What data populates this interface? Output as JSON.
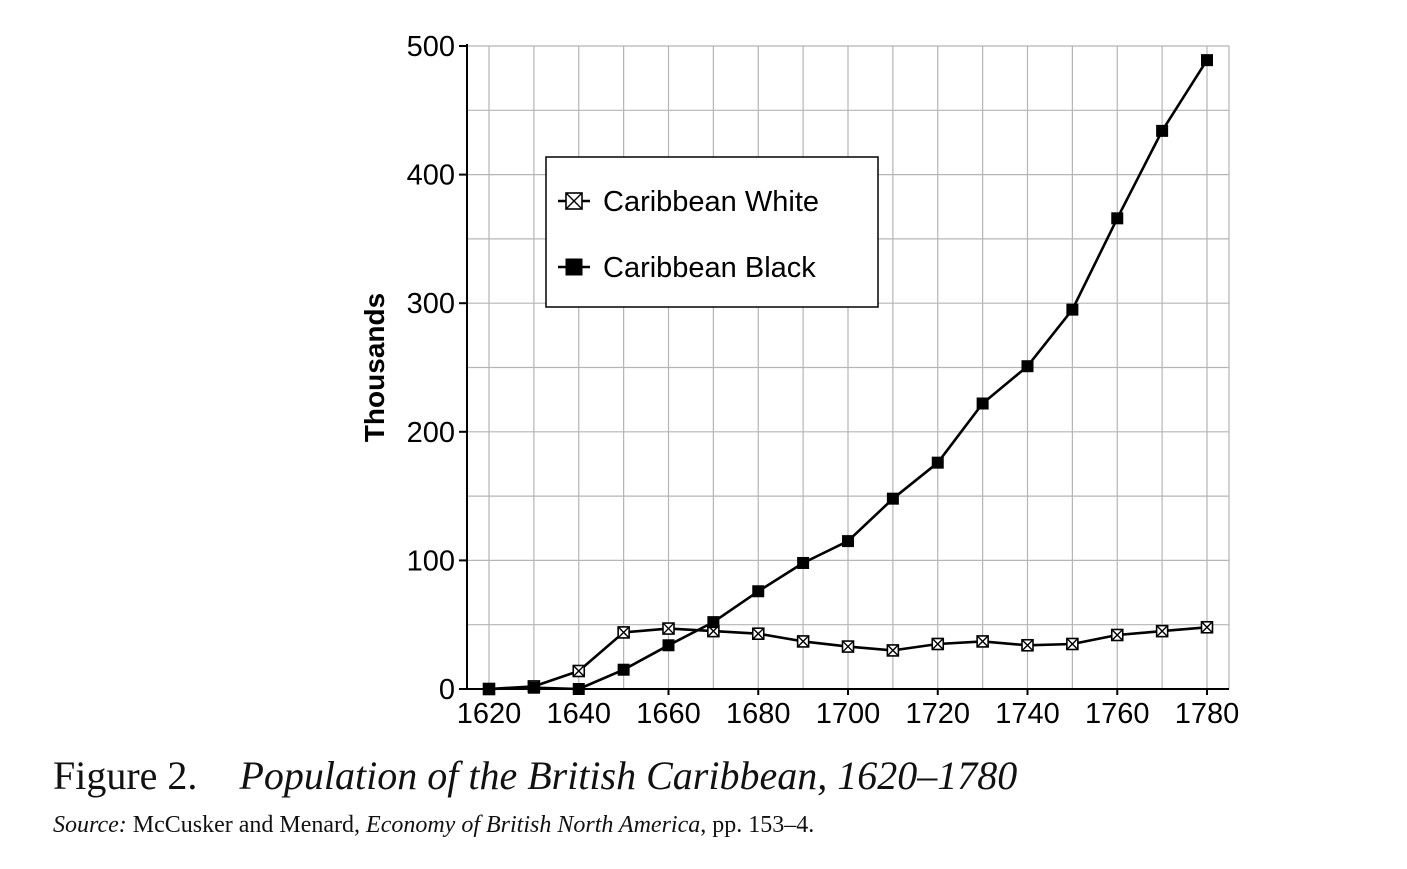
{
  "chart_data": {
    "type": "line",
    "ylabel": "Thousands",
    "xlim": [
      1620,
      1780
    ],
    "ylim": [
      0,
      500
    ],
    "x_ticks": [
      1620,
      1640,
      1660,
      1680,
      1700,
      1720,
      1740,
      1760,
      1780
    ],
    "y_ticks": [
      0,
      100,
      200,
      300,
      400,
      500
    ],
    "grid": true,
    "legend_position": "upper-left",
    "x": [
      1620,
      1630,
      1640,
      1650,
      1660,
      1670,
      1680,
      1690,
      1700,
      1710,
      1720,
      1730,
      1740,
      1750,
      1760,
      1770,
      1780
    ],
    "series": [
      {
        "name": "Caribbean White",
        "marker": "crossed-square",
        "values": [
          0,
          2,
          14,
          44,
          47,
          45,
          43,
          37,
          33,
          30,
          35,
          37,
          34,
          35,
          42,
          45,
          48
        ]
      },
      {
        "name": "Caribbean Black",
        "marker": "filled-square",
        "values": [
          0,
          1,
          0,
          15,
          34,
          52,
          76,
          98,
          115,
          148,
          176,
          222,
          251,
          295,
          366,
          434,
          489
        ]
      }
    ]
  },
  "caption": {
    "figure_label": "Figure 2.",
    "title": "Population of the British Caribbean, 1620–1780"
  },
  "source_line": {
    "prefix": "Source:",
    "authors": " McCusker and Menard, ",
    "work": "Economy of British North America",
    "pages": ", pp. 153–4."
  }
}
